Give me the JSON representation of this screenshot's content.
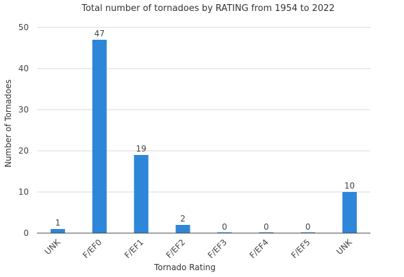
{
  "chart_data": {
    "type": "bar",
    "title": "Total number of tornadoes by RATING from 1954 to 2022",
    "xlabel": "Tornado Rating",
    "ylabel": "Number of Tornadoes",
    "categories": [
      "UNK",
      "F/EF0",
      "F/EF1",
      "F/EF2",
      "F/EF3",
      "F/EF4",
      "F/EF5",
      "UNK"
    ],
    "values": [
      1,
      47,
      19,
      2,
      0,
      0,
      0,
      10
    ],
    "data_labels": [
      "1",
      "47",
      "19",
      "2",
      "0",
      "0",
      "0",
      "10"
    ],
    "ylim": [
      0,
      50
    ],
    "yticks": [
      0,
      10,
      20,
      30,
      40,
      50
    ],
    "grid": true,
    "legend": "none",
    "colors": {
      "bar": "#2e86d9"
    }
  }
}
